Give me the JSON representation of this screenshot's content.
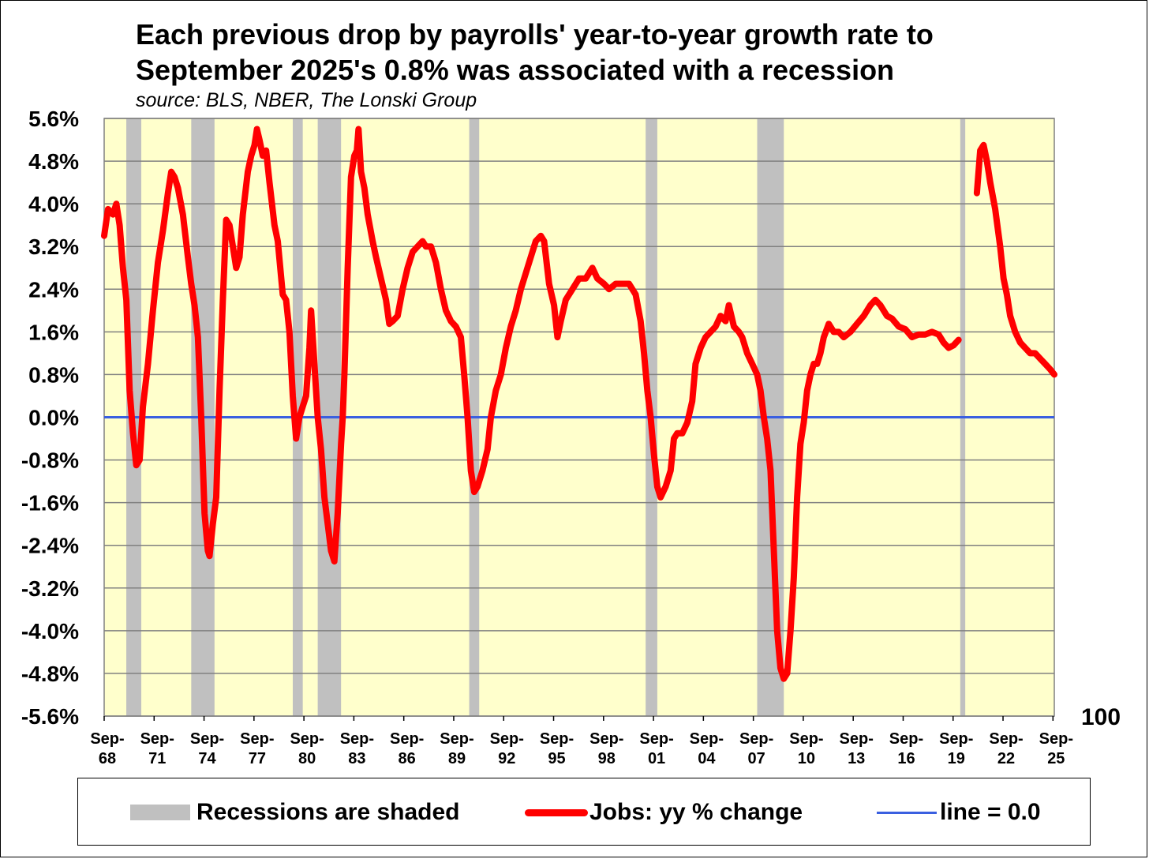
{
  "title_line1": "Each previous drop by payrolls' year-to-year growth rate to",
  "title_line2": "September 2025's 0.8% was associated with a recession",
  "subtitle": "source: BLS, NBER, The Lonski Group",
  "right_axis_label": "100",
  "legend": {
    "recessions": "Recessions are shaded",
    "jobs": "Jobs: yy % change",
    "line": "line = 0.0"
  },
  "colors": {
    "plot_bg": "#ffffcc",
    "recession": "#c0c0c0",
    "series": "#ff0000",
    "zero_line": "#3a5fe0"
  },
  "chart_data": {
    "type": "line",
    "x_range": [
      1968.67,
      2025.75
    ],
    "ylim": [
      -5.6,
      5.6
    ],
    "yticks": [
      "5.6%",
      "4.8%",
      "4.0%",
      "3.2%",
      "2.4%",
      "1.6%",
      "0.8%",
      "0.0%",
      "-0.8%",
      "-1.6%",
      "-2.4%",
      "-3.2%",
      "-4.0%",
      "-4.8%",
      "-5.6%"
    ],
    "ytick_values": [
      5.6,
      4.8,
      4.0,
      3.2,
      2.4,
      1.6,
      0.8,
      0.0,
      -0.8,
      -1.6,
      -2.4,
      -3.2,
      -4.0,
      -4.8,
      -5.6
    ],
    "xticks": [
      {
        "line1": "Sep-",
        "line2": "68",
        "x": 1968.67
      },
      {
        "line1": "Sep-",
        "line2": "71",
        "x": 1971.67
      },
      {
        "line1": "Sep-",
        "line2": "74",
        "x": 1974.67
      },
      {
        "line1": "Sep-",
        "line2": "77",
        "x": 1977.67
      },
      {
        "line1": "Sep-",
        "line2": "80",
        "x": 1980.67
      },
      {
        "line1": "Sep-",
        "line2": "83",
        "x": 1983.67
      },
      {
        "line1": "Sep-",
        "line2": "86",
        "x": 1986.67
      },
      {
        "line1": "Sep-",
        "line2": "89",
        "x": 1989.67
      },
      {
        "line1": "Sep-",
        "line2": "92",
        "x": 1992.67
      },
      {
        "line1": "Sep-",
        "line2": "95",
        "x": 1995.67
      },
      {
        "line1": "Sep-",
        "line2": "98",
        "x": 1998.67
      },
      {
        "line1": "Sep-",
        "line2": "01",
        "x": 2001.67
      },
      {
        "line1": "Sep-",
        "line2": "04",
        "x": 2004.67
      },
      {
        "line1": "Sep-",
        "line2": "07",
        "x": 2007.67
      },
      {
        "line1": "Sep-",
        "line2": "10",
        "x": 2010.67
      },
      {
        "line1": "Sep-",
        "line2": "13",
        "x": 2013.67
      },
      {
        "line1": "Sep-",
        "line2": "16",
        "x": 2016.67
      },
      {
        "line1": "Sep-",
        "line2": "19",
        "x": 2019.67
      },
      {
        "line1": "Sep-",
        "line2": "22",
        "x": 2022.67
      },
      {
        "line1": "Sep-",
        "line2": "25",
        "x": 2025.67
      }
    ],
    "recessions": [
      [
        1970.0,
        1970.9
      ],
      [
        1973.9,
        1975.3
      ],
      [
        1980.0,
        1980.6
      ],
      [
        1981.5,
        1982.9
      ],
      [
        1990.6,
        1991.2
      ],
      [
        2001.2,
        2001.9
      ],
      [
        2007.9,
        2009.5
      ],
      [
        2020.1,
        2020.4
      ]
    ],
    "zero_line": 0.0,
    "series": [
      {
        "name": "Jobs: yy % change",
        "points": [
          [
            1968.67,
            3.4
          ],
          [
            1968.9,
            3.9
          ],
          [
            1969.2,
            3.8
          ],
          [
            1969.4,
            4.0
          ],
          [
            1969.6,
            3.6
          ],
          [
            1969.8,
            2.8
          ],
          [
            1970.0,
            2.2
          ],
          [
            1970.2,
            0.5
          ],
          [
            1970.4,
            -0.3
          ],
          [
            1970.6,
            -0.9
          ],
          [
            1970.8,
            -0.8
          ],
          [
            1971.0,
            0.2
          ],
          [
            1971.3,
            1.0
          ],
          [
            1971.6,
            2.0
          ],
          [
            1971.9,
            2.9
          ],
          [
            1972.2,
            3.5
          ],
          [
            1972.5,
            4.2
          ],
          [
            1972.7,
            4.6
          ],
          [
            1972.9,
            4.5
          ],
          [
            1973.1,
            4.3
          ],
          [
            1973.4,
            3.8
          ],
          [
            1973.7,
            3.0
          ],
          [
            1973.9,
            2.5
          ],
          [
            1974.1,
            2.1
          ],
          [
            1974.3,
            1.5
          ],
          [
            1974.5,
            0.0
          ],
          [
            1974.7,
            -1.8
          ],
          [
            1974.9,
            -2.5
          ],
          [
            1975.0,
            -2.6
          ],
          [
            1975.2,
            -2.0
          ],
          [
            1975.4,
            -1.5
          ],
          [
            1975.6,
            0.5
          ],
          [
            1975.8,
            2.2
          ],
          [
            1976.0,
            3.7
          ],
          [
            1976.2,
            3.6
          ],
          [
            1976.4,
            3.2
          ],
          [
            1976.6,
            2.8
          ],
          [
            1976.8,
            3.0
          ],
          [
            1977.0,
            3.8
          ],
          [
            1977.3,
            4.6
          ],
          [
            1977.5,
            4.9
          ],
          [
            1977.7,
            5.1
          ],
          [
            1977.85,
            5.4
          ],
          [
            1978.0,
            5.2
          ],
          [
            1978.2,
            4.9
          ],
          [
            1978.4,
            5.0
          ],
          [
            1978.6,
            4.4
          ],
          [
            1978.9,
            3.6
          ],
          [
            1979.1,
            3.3
          ],
          [
            1979.4,
            2.3
          ],
          [
            1979.6,
            2.2
          ],
          [
            1979.8,
            1.6
          ],
          [
            1980.0,
            0.4
          ],
          [
            1980.2,
            -0.4
          ],
          [
            1980.4,
            0.0
          ],
          [
            1980.6,
            0.2
          ],
          [
            1980.8,
            0.4
          ],
          [
            1981.0,
            1.3
          ],
          [
            1981.1,
            2.0
          ],
          [
            1981.3,
            1.0
          ],
          [
            1981.5,
            0.0
          ],
          [
            1981.7,
            -0.6
          ],
          [
            1981.9,
            -1.5
          ],
          [
            1982.1,
            -2.0
          ],
          [
            1982.3,
            -2.5
          ],
          [
            1982.5,
            -2.7
          ],
          [
            1982.7,
            -1.8
          ],
          [
            1982.9,
            -0.5
          ],
          [
            1983.0,
            0.0
          ],
          [
            1983.1,
            0.8
          ],
          [
            1983.3,
            2.8
          ],
          [
            1983.5,
            4.5
          ],
          [
            1983.7,
            4.9
          ],
          [
            1983.85,
            5.0
          ],
          [
            1983.95,
            5.4
          ],
          [
            1984.1,
            4.6
          ],
          [
            1984.3,
            4.3
          ],
          [
            1984.5,
            3.8
          ],
          [
            1984.8,
            3.3
          ],
          [
            1985.0,
            3.0
          ],
          [
            1985.3,
            2.6
          ],
          [
            1985.6,
            2.2
          ],
          [
            1985.8,
            1.75
          ],
          [
            1986.0,
            1.8
          ],
          [
            1986.3,
            1.9
          ],
          [
            1986.6,
            2.4
          ],
          [
            1986.9,
            2.8
          ],
          [
            1987.2,
            3.1
          ],
          [
            1987.5,
            3.2
          ],
          [
            1987.8,
            3.3
          ],
          [
            1988.0,
            3.2
          ],
          [
            1988.3,
            3.2
          ],
          [
            1988.6,
            2.9
          ],
          [
            1988.9,
            2.4
          ],
          [
            1989.2,
            2.0
          ],
          [
            1989.5,
            1.8
          ],
          [
            1989.8,
            1.7
          ],
          [
            1990.1,
            1.5
          ],
          [
            1990.3,
            0.8
          ],
          [
            1990.5,
            0.0
          ],
          [
            1990.7,
            -1.0
          ],
          [
            1990.9,
            -1.4
          ],
          [
            1991.1,
            -1.3
          ],
          [
            1991.4,
            -1.0
          ],
          [
            1991.7,
            -0.6
          ],
          [
            1991.9,
            0.0
          ],
          [
            1992.2,
            0.5
          ],
          [
            1992.5,
            0.8
          ],
          [
            1992.8,
            1.3
          ],
          [
            1993.1,
            1.7
          ],
          [
            1993.4,
            2.0
          ],
          [
            1993.7,
            2.4
          ],
          [
            1994.0,
            2.7
          ],
          [
            1994.3,
            3.0
          ],
          [
            1994.6,
            3.3
          ],
          [
            1994.9,
            3.4
          ],
          [
            1995.1,
            3.3
          ],
          [
            1995.4,
            2.5
          ],
          [
            1995.7,
            2.1
          ],
          [
            1995.9,
            1.5
          ],
          [
            1996.1,
            1.8
          ],
          [
            1996.4,
            2.2
          ],
          [
            1996.8,
            2.4
          ],
          [
            1997.2,
            2.6
          ],
          [
            1997.6,
            2.6
          ],
          [
            1998.0,
            2.8
          ],
          [
            1998.3,
            2.6
          ],
          [
            1998.7,
            2.5
          ],
          [
            1999.0,
            2.4
          ],
          [
            1999.4,
            2.5
          ],
          [
            1999.8,
            2.5
          ],
          [
            2000.2,
            2.5
          ],
          [
            2000.6,
            2.3
          ],
          [
            2000.9,
            1.8
          ],
          [
            2001.1,
            1.2
          ],
          [
            2001.3,
            0.5
          ],
          [
            2001.5,
            0.0
          ],
          [
            2001.7,
            -0.7
          ],
          [
            2001.9,
            -1.3
          ],
          [
            2002.1,
            -1.5
          ],
          [
            2002.4,
            -1.3
          ],
          [
            2002.7,
            -1.0
          ],
          [
            2002.9,
            -0.4
          ],
          [
            2003.1,
            -0.3
          ],
          [
            2003.4,
            -0.3
          ],
          [
            2003.7,
            -0.1
          ],
          [
            2004.0,
            0.3
          ],
          [
            2004.2,
            1.0
          ],
          [
            2004.5,
            1.3
          ],
          [
            2004.8,
            1.5
          ],
          [
            2005.1,
            1.6
          ],
          [
            2005.4,
            1.7
          ],
          [
            2005.7,
            1.9
          ],
          [
            2006.0,
            1.8
          ],
          [
            2006.2,
            2.1
          ],
          [
            2006.5,
            1.7
          ],
          [
            2006.8,
            1.6
          ],
          [
            2007.0,
            1.5
          ],
          [
            2007.3,
            1.2
          ],
          [
            2007.6,
            1.0
          ],
          [
            2007.9,
            0.8
          ],
          [
            2008.1,
            0.5
          ],
          [
            2008.3,
            0.0
          ],
          [
            2008.5,
            -0.4
          ],
          [
            2008.7,
            -1.0
          ],
          [
            2008.9,
            -2.5
          ],
          [
            2009.1,
            -4.0
          ],
          [
            2009.3,
            -4.7
          ],
          [
            2009.5,
            -4.9
          ],
          [
            2009.7,
            -4.8
          ],
          [
            2009.9,
            -4.0
          ],
          [
            2010.1,
            -3.0
          ],
          [
            2010.3,
            -1.5
          ],
          [
            2010.5,
            -0.5
          ],
          [
            2010.7,
            -0.1
          ],
          [
            2010.9,
            0.5
          ],
          [
            2011.1,
            0.8
          ],
          [
            2011.3,
            1.0
          ],
          [
            2011.5,
            1.0
          ],
          [
            2011.7,
            1.2
          ],
          [
            2011.9,
            1.5
          ],
          [
            2012.2,
            1.75
          ],
          [
            2012.5,
            1.6
          ],
          [
            2012.8,
            1.6
          ],
          [
            2013.1,
            1.5
          ],
          [
            2013.5,
            1.6
          ],
          [
            2013.9,
            1.75
          ],
          [
            2014.3,
            1.9
          ],
          [
            2014.7,
            2.1
          ],
          [
            2015.0,
            2.2
          ],
          [
            2015.3,
            2.1
          ],
          [
            2015.7,
            1.9
          ],
          [
            2016.0,
            1.85
          ],
          [
            2016.4,
            1.7
          ],
          [
            2016.8,
            1.65
          ],
          [
            2017.2,
            1.5
          ],
          [
            2017.6,
            1.55
          ],
          [
            2018.0,
            1.55
          ],
          [
            2018.4,
            1.6
          ],
          [
            2018.8,
            1.55
          ],
          [
            2019.1,
            1.4
          ],
          [
            2019.4,
            1.3
          ],
          [
            2019.7,
            1.35
          ],
          [
            2020.0,
            1.45
          ],
          null,
          [
            2021.1,
            4.2
          ],
          [
            2021.3,
            5.0
          ],
          [
            2021.5,
            5.1
          ],
          [
            2021.7,
            4.8
          ],
          [
            2021.9,
            4.4
          ],
          [
            2022.2,
            3.9
          ],
          [
            2022.5,
            3.2
          ],
          [
            2022.7,
            2.6
          ],
          [
            2022.9,
            2.3
          ],
          [
            2023.1,
            1.9
          ],
          [
            2023.4,
            1.6
          ],
          [
            2023.7,
            1.4
          ],
          [
            2024.0,
            1.3
          ],
          [
            2024.3,
            1.2
          ],
          [
            2024.6,
            1.2
          ],
          [
            2024.9,
            1.1
          ],
          [
            2025.2,
            1.0
          ],
          [
            2025.5,
            0.9
          ],
          [
            2025.75,
            0.8
          ]
        ]
      }
    ]
  }
}
